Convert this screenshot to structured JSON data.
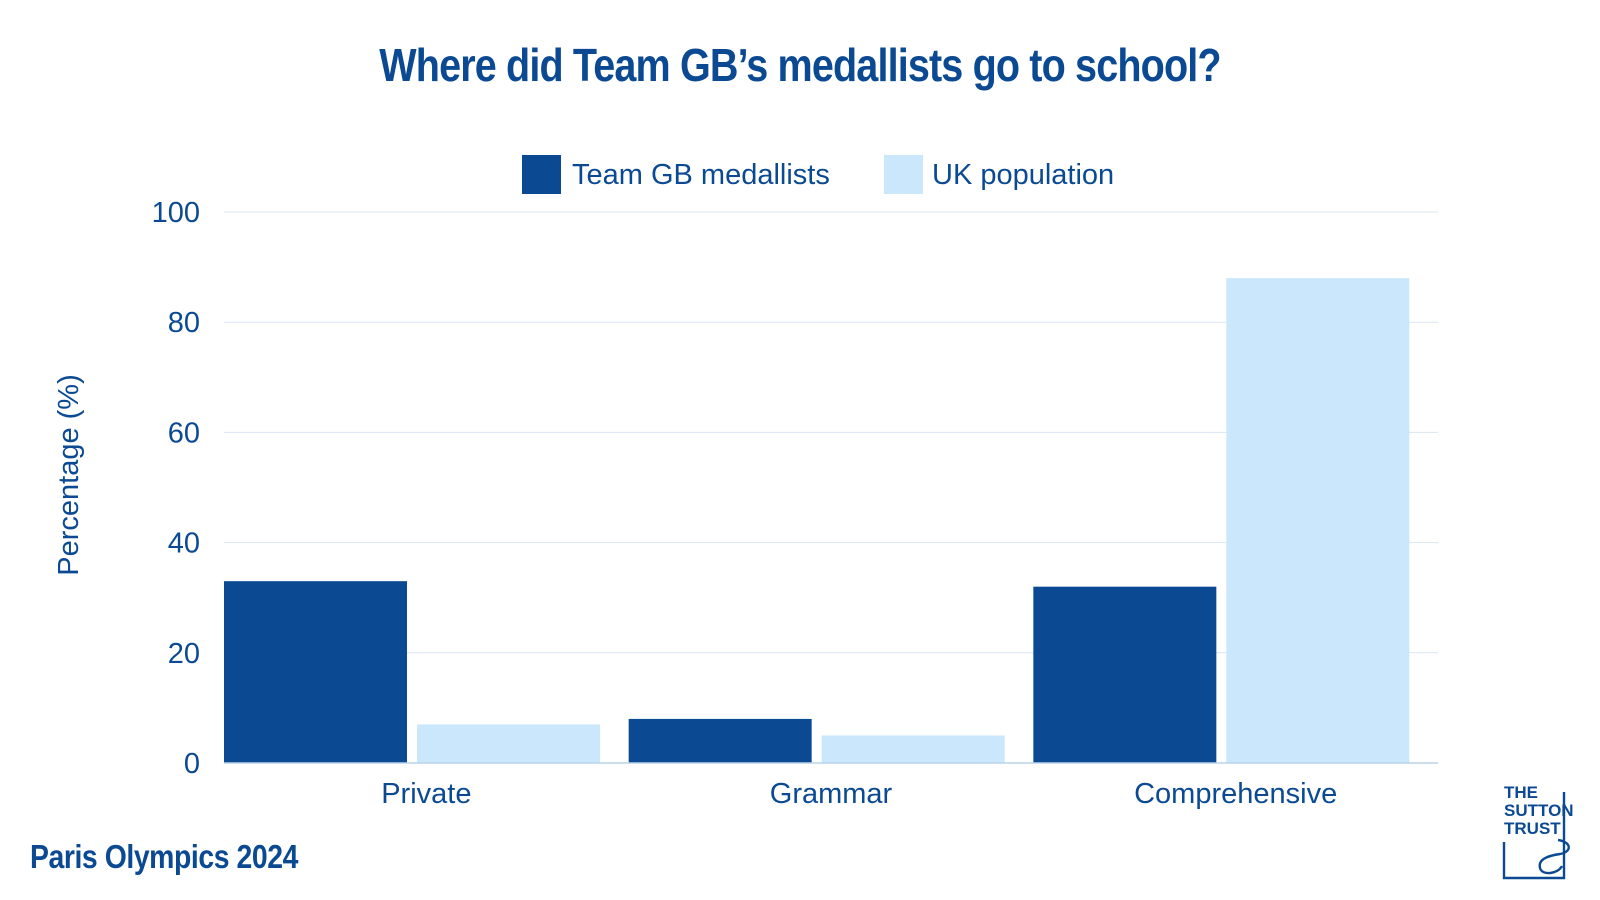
{
  "title": "Where did Team GB’s medallists go to school?",
  "footer": "Paris Olympics 2024",
  "logo": {
    "lines": [
      "THE",
      "SUTTON",
      "TRUST"
    ]
  },
  "colors": {
    "dark_blue": "#0b4a93",
    "light_blue": "#cbe7fb",
    "grid": "#d8e6f3"
  },
  "chart_data": {
    "type": "bar",
    "categories": [
      "Private",
      "Grammar",
      "Comprehensive"
    ],
    "series": [
      {
        "name": "Team GB medallists",
        "values": [
          33,
          8,
          32
        ],
        "color": "#0b4a93"
      },
      {
        "name": "UK population",
        "values": [
          7,
          5,
          88
        ],
        "color": "#cbe7fb"
      }
    ],
    "title": "Where did Team GB’s medallists go to school?",
    "xlabel": "",
    "ylabel": "Percentage (%)",
    "ylim": [
      0,
      100
    ],
    "yticks": [
      0,
      20,
      40,
      60,
      80,
      100
    ],
    "grid": true,
    "legend": "top-center"
  }
}
